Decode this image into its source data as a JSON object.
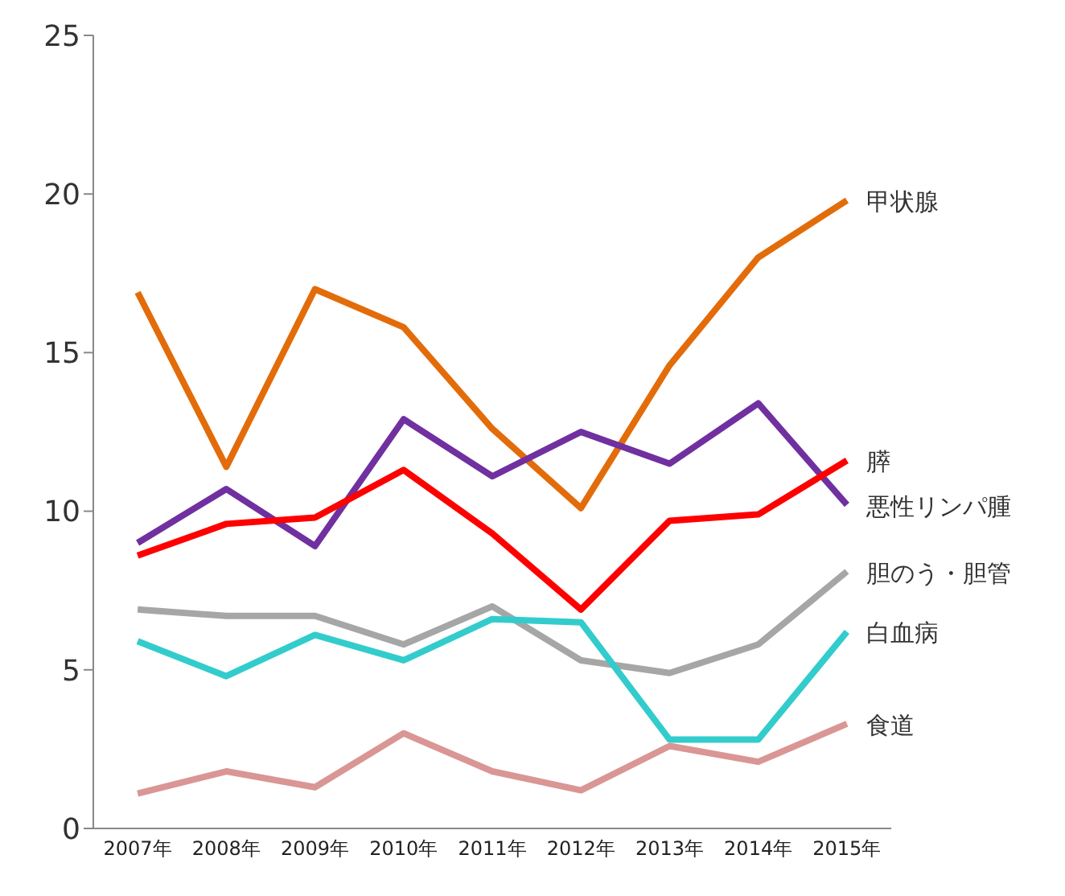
{
  "chart_data": {
    "type": "line",
    "categories": [
      "2007年",
      "2008年",
      "2009年",
      "2010年",
      "2011年",
      "2012年",
      "2013年",
      "2014年",
      "2015年"
    ],
    "ylim": [
      0,
      25
    ],
    "yticks": [
      0,
      5,
      10,
      15,
      20,
      25
    ],
    "grid": false,
    "legend": false,
    "marker": "none",
    "line_style": "solid",
    "series": [
      {
        "name": "甲状腺",
        "color": "#e36c0a",
        "values": [
          16.9,
          11.4,
          17.0,
          15.8,
          12.6,
          10.1,
          14.6,
          18.0,
          19.8
        ]
      },
      {
        "name": "悪性リンパ腫",
        "color": "#7030a0",
        "values": [
          9.0,
          10.7,
          8.9,
          12.9,
          11.1,
          12.5,
          11.5,
          13.4,
          10.2
        ]
      },
      {
        "name": "膵",
        "color": "#ff0000",
        "values": [
          8.6,
          9.6,
          9.8,
          11.3,
          9.3,
          6.9,
          9.7,
          9.9,
          11.6
        ]
      },
      {
        "name": "胆のう・胆管",
        "color": "#a6a6a6",
        "values": [
          6.9,
          6.7,
          6.7,
          5.8,
          7.0,
          5.3,
          4.9,
          5.8,
          8.1
        ]
      },
      {
        "name": "白血病",
        "color": "#33cccc",
        "values": [
          5.9,
          4.8,
          6.1,
          5.3,
          6.6,
          6.5,
          2.8,
          2.8,
          6.2
        ]
      },
      {
        "name": "食道",
        "color": "#d99694",
        "values": [
          1.1,
          1.8,
          1.3,
          3.0,
          1.8,
          1.2,
          2.6,
          2.1,
          3.3
        ]
      }
    ]
  }
}
